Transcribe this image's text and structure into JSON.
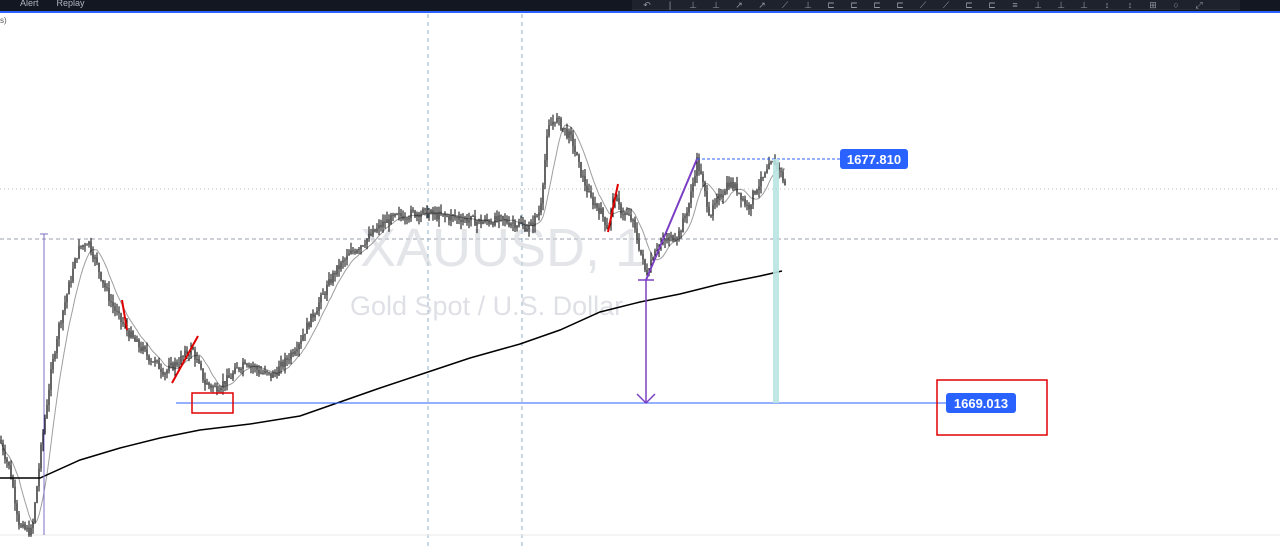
{
  "toolbar": {
    "menu": [
      "Alert",
      "Replay"
    ],
    "tools": [
      "↶",
      "|",
      "⊥",
      "⊥",
      "↗",
      "↗",
      "⟋",
      "⊥",
      "⊏",
      "⊏",
      "⊏",
      "⊏",
      "⟋",
      "⟋",
      "⊏",
      "⊏",
      "≡",
      "⊥",
      "⊥",
      "⊥",
      "↕",
      "↕",
      "⊞",
      "○",
      "⤢"
    ]
  },
  "corner_text": "s)",
  "chart_data": {
    "type": "line",
    "symbol": "XAUUSD, 1",
    "description": "Gold Spot / U.S. Dollar",
    "price_labels": [
      "1677.810",
      "1669.013"
    ],
    "levels": {
      "upper": 1677.81,
      "lower": 1669.013
    },
    "ylim": [
      1664.5,
      1683.0
    ],
    "grid": false,
    "colors": {
      "candle": "#000000",
      "fast_ma": "#9e9e9e",
      "slow_ma": "#000000",
      "level_line": "#2962ff",
      "label_bg": "#2962ff",
      "annotation_red": "#e00000",
      "annotation_purple": "#7b3fc4",
      "highlight_teal": "#b9e3e3"
    }
  }
}
